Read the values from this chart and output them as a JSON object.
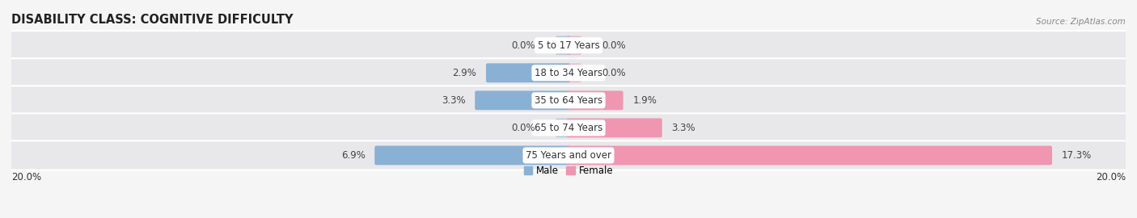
{
  "title": "DISABILITY CLASS: COGNITIVE DIFFICULTY",
  "source": "Source: ZipAtlas.com",
  "categories": [
    "5 to 17 Years",
    "18 to 34 Years",
    "35 to 64 Years",
    "65 to 74 Years",
    "75 Years and over"
  ],
  "male_values": [
    0.0,
    2.9,
    3.3,
    0.0,
    6.9
  ],
  "female_values": [
    0.0,
    0.0,
    1.9,
    3.3,
    17.3
  ],
  "male_color": "#8ab0d4",
  "female_color": "#f096b0",
  "row_bg_color": "#e8e8eb",
  "bg_color": "#f5f5f5",
  "max_val": 20.0,
  "axis_label_left": "20.0%",
  "axis_label_right": "20.0%",
  "label_fontsize": 8.5,
  "title_fontsize": 10.5,
  "category_fontsize": 8.5,
  "value_fontsize": 8.5,
  "source_fontsize": 7.5
}
